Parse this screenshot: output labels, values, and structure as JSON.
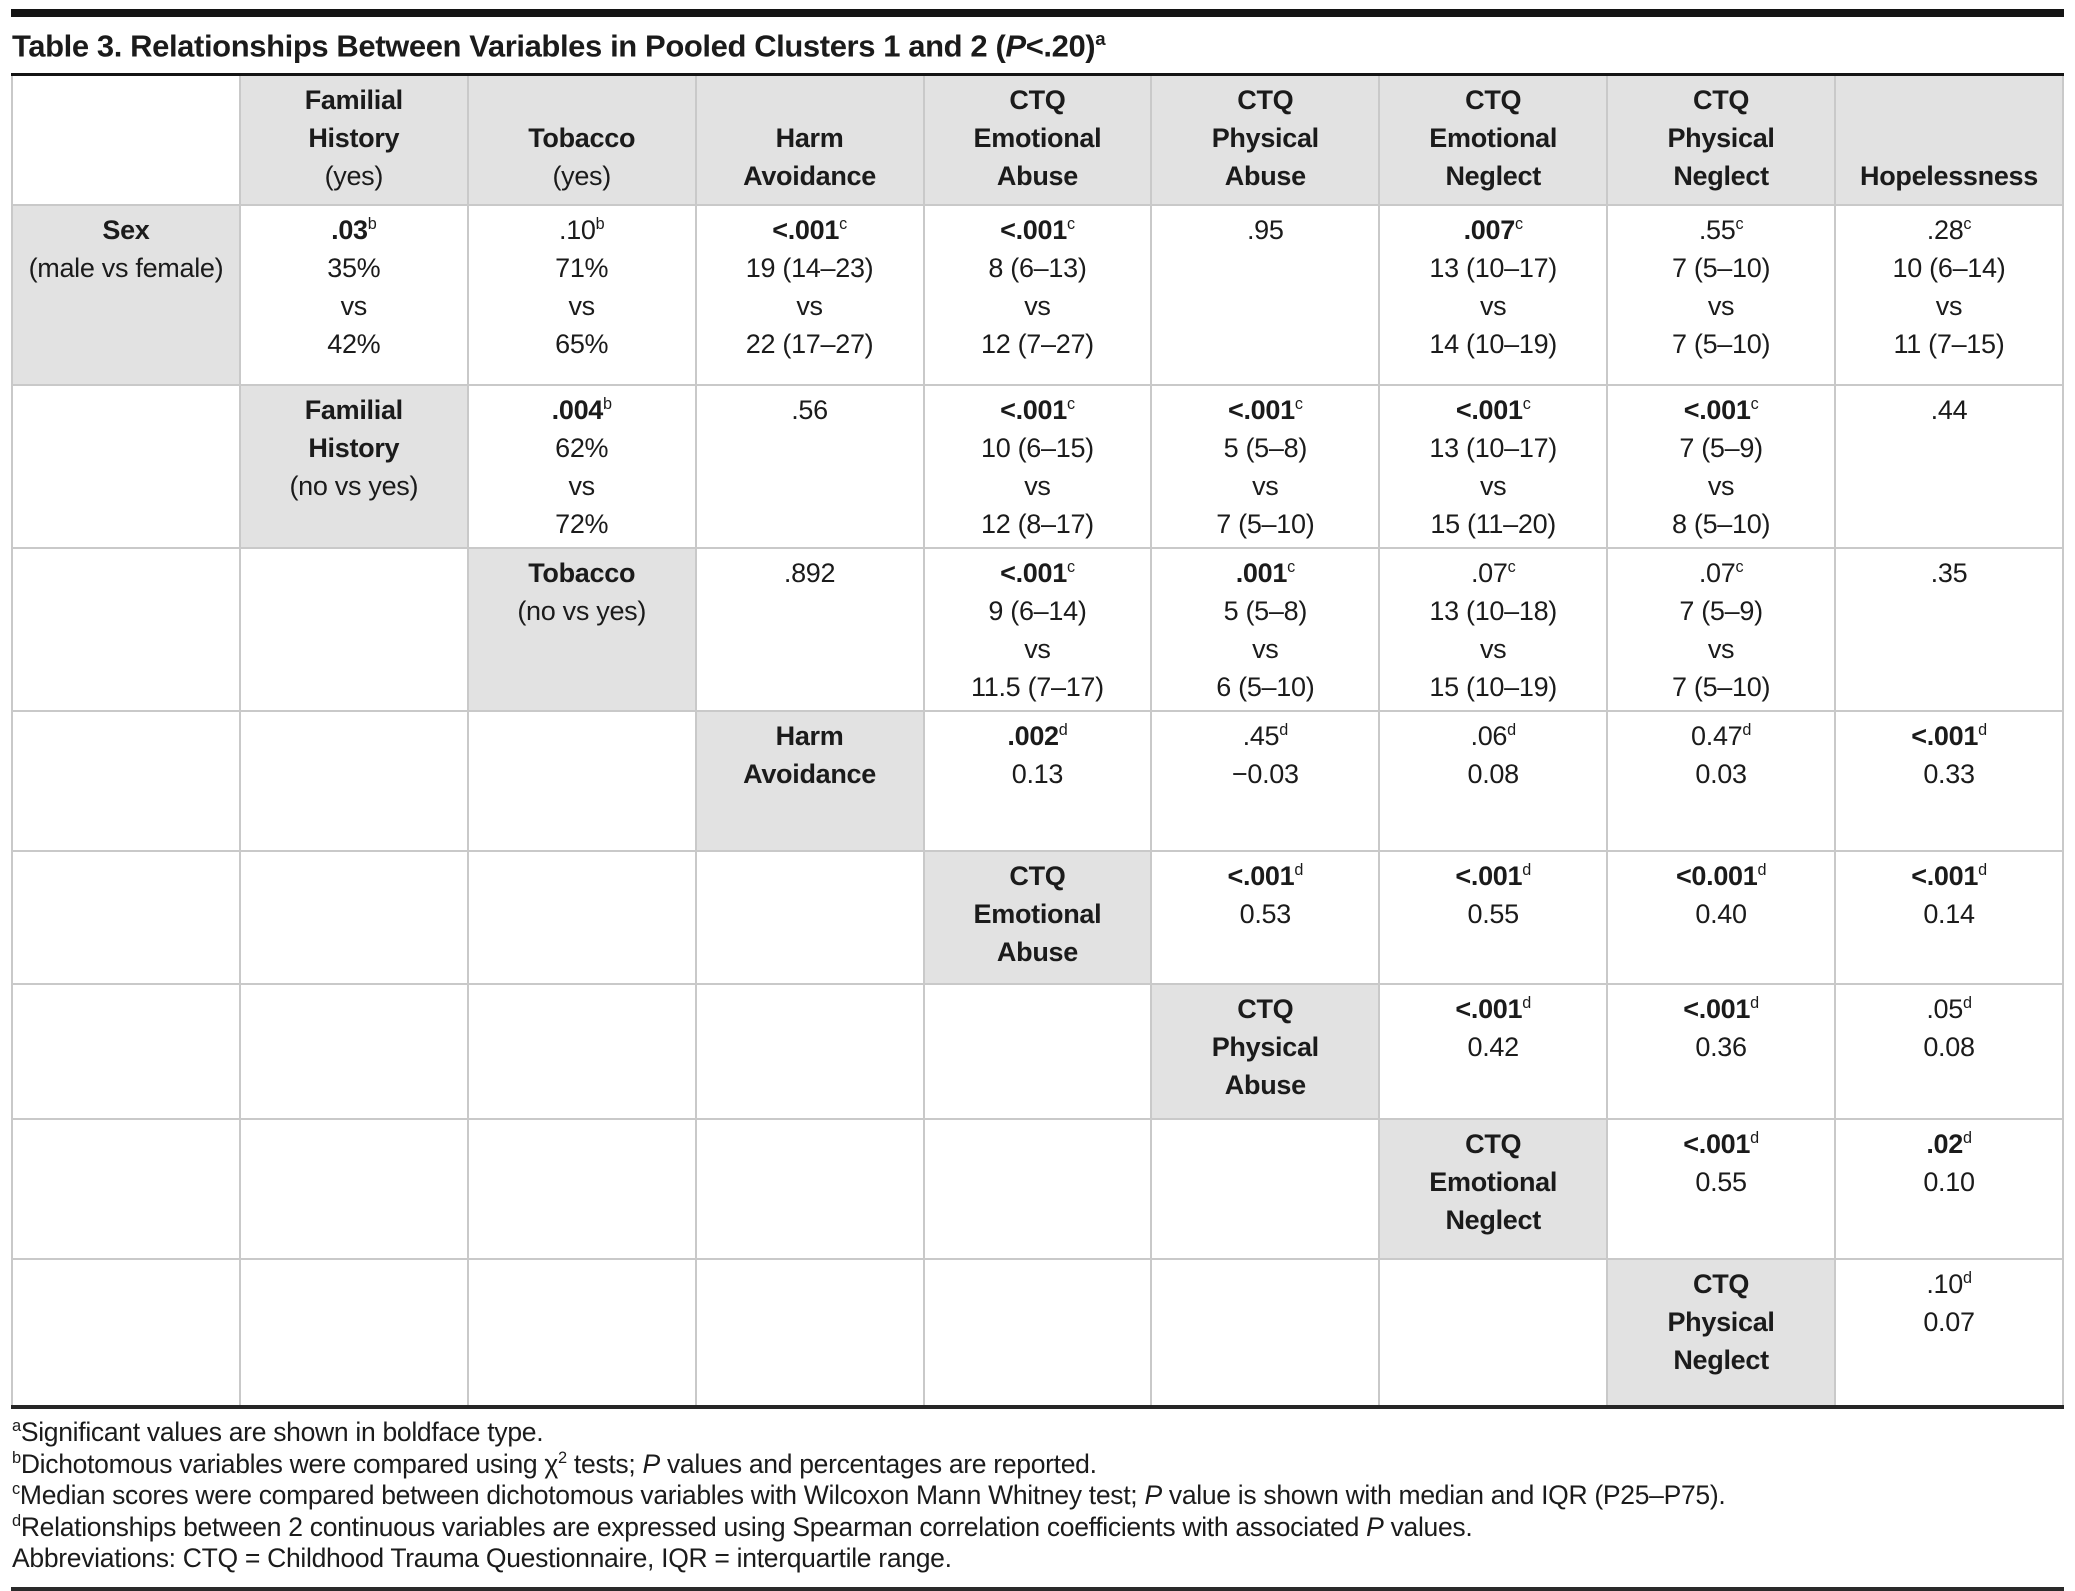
{
  "title": {
    "lead": "Table 3. Relationships Between Variables in Pooled Clusters 1 and 2 (",
    "p_italic": "P",
    "tail": "<.20)",
    "superscript": "a"
  },
  "colors": {
    "cell_shade": "#e2e2e2",
    "grid_line": "#c9c9c9",
    "rule_dark": "#141414"
  },
  "table": {
    "header": [
      null,
      {
        "k": "h",
        "b": [
          "Familial",
          "History"
        ],
        "n": [
          "(yes)"
        ]
      },
      {
        "k": "h",
        "b": [
          "Tobacco"
        ],
        "n": [
          "(yes)"
        ]
      },
      {
        "k": "h",
        "b": [
          "Harm",
          "Avoidance"
        ],
        "n": []
      },
      {
        "k": "h",
        "b": [
          "CTQ",
          "Emotional",
          "Abuse"
        ],
        "n": []
      },
      {
        "k": "h",
        "b": [
          "CTQ",
          "Physical",
          "Abuse"
        ],
        "n": []
      },
      {
        "k": "h",
        "b": [
          "CTQ",
          "Emotional",
          "Neglect"
        ],
        "n": []
      },
      {
        "k": "h",
        "b": [
          "CTQ",
          "Physical",
          "Neglect"
        ],
        "n": []
      },
      {
        "k": "h",
        "b": [
          "Hopelessness"
        ],
        "n": []
      }
    ],
    "rows": [
      [
        {
          "k": "h",
          "b": [
            "Sex"
          ],
          "n": [
            "(male vs female)"
          ]
        },
        {
          "k": "v",
          "p": ".03",
          "s": "b",
          "pb": true,
          "r": [
            "35%",
            "vs",
            "42%"
          ]
        },
        {
          "k": "v",
          "p": ".10",
          "s": "b",
          "pb": false,
          "r": [
            "71%",
            "vs",
            "65%"
          ]
        },
        {
          "k": "v",
          "p": "<.001",
          "s": "c",
          "pb": true,
          "r": [
            "19 (14–23)",
            "vs",
            "22 (17–27)"
          ]
        },
        {
          "k": "v",
          "p": "<.001",
          "s": "c",
          "pb": true,
          "r": [
            "8 (6–13)",
            "vs",
            "12 (7–27)"
          ]
        },
        {
          "k": "v",
          "p": ".95",
          "s": "",
          "pb": false,
          "r": []
        },
        {
          "k": "v",
          "p": ".007",
          "s": "c",
          "pb": true,
          "r": [
            "13 (10–17)",
            "vs",
            "14 (10–19)"
          ]
        },
        {
          "k": "v",
          "p": ".55",
          "s": "c",
          "pb": false,
          "r": [
            "7 (5–10)",
            "vs",
            "7 (5–10)"
          ]
        },
        {
          "k": "v",
          "p": ".28",
          "s": "c",
          "pb": false,
          "r": [
            "10 (6–14)",
            "vs",
            "11 (7–15)"
          ]
        }
      ],
      [
        null,
        {
          "k": "h",
          "b": [
            "Familial",
            "History"
          ],
          "n": [
            "(no vs yes)"
          ]
        },
        {
          "k": "v",
          "p": ".004",
          "s": "b",
          "pb": true,
          "r": [
            "62%",
            "vs",
            "72%"
          ]
        },
        {
          "k": "v",
          "p": ".56",
          "s": "",
          "pb": false,
          "r": []
        },
        {
          "k": "v",
          "p": "<.001",
          "s": "c",
          "pb": true,
          "r": [
            "10 (6–15)",
            "vs",
            "12 (8–17)"
          ]
        },
        {
          "k": "v",
          "p": "<.001",
          "s": "c",
          "pb": true,
          "r": [
            "5 (5–8)",
            "vs",
            "7 (5–10)"
          ]
        },
        {
          "k": "v",
          "p": "<.001",
          "s": "c",
          "pb": true,
          "r": [
            "13 (10–17)",
            "vs",
            "15 (11–20)"
          ]
        },
        {
          "k": "v",
          "p": "<.001",
          "s": "c",
          "pb": true,
          "r": [
            "7 (5–9)",
            "vs",
            "8 (5–10)"
          ]
        },
        {
          "k": "v",
          "p": ".44",
          "s": "",
          "pb": false,
          "r": []
        }
      ],
      [
        null,
        null,
        {
          "k": "h",
          "b": [
            "Tobacco"
          ],
          "n": [
            "(no vs yes)"
          ]
        },
        {
          "k": "v",
          "p": ".892",
          "s": "",
          "pb": false,
          "r": []
        },
        {
          "k": "v",
          "p": "<.001",
          "s": "c",
          "pb": true,
          "r": [
            "9 (6–14)",
            "vs",
            "11.5 (7–17)"
          ]
        },
        {
          "k": "v",
          "p": ".001",
          "s": "c",
          "pb": true,
          "r": [
            "5 (5–8)",
            "vs",
            "6 (5–10)"
          ]
        },
        {
          "k": "v",
          "p": ".07",
          "s": "c",
          "pb": false,
          "r": [
            "13 (10–18)",
            "vs",
            "15 (10–19)"
          ]
        },
        {
          "k": "v",
          "p": ".07",
          "s": "c",
          "pb": false,
          "r": [
            "7 (5–9)",
            "vs",
            "7 (5–10)"
          ]
        },
        {
          "k": "v",
          "p": ".35",
          "s": "",
          "pb": false,
          "r": []
        }
      ],
      [
        null,
        null,
        null,
        {
          "k": "h",
          "b": [
            "Harm",
            "Avoidance"
          ],
          "n": []
        },
        {
          "k": "v",
          "p": ".002",
          "s": "d",
          "pb": true,
          "r": [
            "0.13"
          ]
        },
        {
          "k": "v",
          "p": ".45",
          "s": "d",
          "pb": false,
          "r": [
            "−0.03"
          ]
        },
        {
          "k": "v",
          "p": ".06",
          "s": "d",
          "pb": false,
          "r": [
            "0.08"
          ]
        },
        {
          "k": "v",
          "p": "0.47",
          "s": "d",
          "pb": false,
          "r": [
            "0.03"
          ]
        },
        {
          "k": "v",
          "p": "<.001",
          "s": "d",
          "pb": true,
          "r": [
            "0.33"
          ]
        }
      ],
      [
        null,
        null,
        null,
        null,
        {
          "k": "h",
          "b": [
            "CTQ",
            "Emotional",
            "Abuse"
          ],
          "n": []
        },
        {
          "k": "v",
          "p": "<.001",
          "s": "d",
          "pb": true,
          "r": [
            "0.53"
          ]
        },
        {
          "k": "v",
          "p": "<.001",
          "s": "d",
          "pb": true,
          "r": [
            "0.55"
          ]
        },
        {
          "k": "v",
          "p": "<0.001",
          "s": "d",
          "pb": true,
          "r": [
            "0.40"
          ]
        },
        {
          "k": "v",
          "p": "<.001",
          "s": "d",
          "pb": true,
          "r": [
            "0.14"
          ]
        }
      ],
      [
        null,
        null,
        null,
        null,
        null,
        {
          "k": "h",
          "b": [
            "CTQ",
            "Physical",
            "Abuse"
          ],
          "n": []
        },
        {
          "k": "v",
          "p": "<.001",
          "s": "d",
          "pb": true,
          "r": [
            "0.42"
          ]
        },
        {
          "k": "v",
          "p": "<.001",
          "s": "d",
          "pb": true,
          "r": [
            "0.36"
          ]
        },
        {
          "k": "v",
          "p": ".05",
          "s": "d",
          "pb": false,
          "r": [
            "0.08"
          ]
        }
      ],
      [
        null,
        null,
        null,
        null,
        null,
        null,
        {
          "k": "h",
          "b": [
            "CTQ",
            "Emotional",
            "Neglect"
          ],
          "n": []
        },
        {
          "k": "v",
          "p": "<.001",
          "s": "d",
          "pb": true,
          "r": [
            "0.55"
          ]
        },
        {
          "k": "v",
          "p": ".02",
          "s": "d",
          "pb": true,
          "r": [
            "0.10"
          ]
        }
      ],
      [
        null,
        null,
        null,
        null,
        null,
        null,
        null,
        {
          "k": "h",
          "b": [
            "CTQ",
            "Physical",
            "Neglect"
          ],
          "n": []
        },
        {
          "k": "v",
          "p": ".10",
          "s": "d",
          "pb": false,
          "r": [
            "0.07"
          ]
        }
      ]
    ]
  },
  "footnotes": [
    {
      "sup": "a",
      "segs": [
        {
          "t": "Significant values are shown in boldface type."
        }
      ]
    },
    {
      "sup": "b",
      "segs": [
        {
          "t": "Dichotomous variables were compared using χ"
        },
        {
          "t": "2",
          "sup": true
        },
        {
          "t": " tests; "
        },
        {
          "t": "P",
          "i": true
        },
        {
          "t": " values and percentages are reported."
        }
      ]
    },
    {
      "sup": "c",
      "segs": [
        {
          "t": "Median scores were compared between dichotomous variables with Wilcoxon Mann Whitney test; "
        },
        {
          "t": "P",
          "i": true
        },
        {
          "t": " value is shown with median and IQR (P25–P75)."
        }
      ]
    },
    {
      "sup": "d",
      "segs": [
        {
          "t": "Relationships between 2 continuous variables are expressed using Spearman correlation coefficients with associated "
        },
        {
          "t": "P",
          "i": true
        },
        {
          "t": " values."
        }
      ]
    },
    {
      "sup": "",
      "segs": [
        {
          "t": "Abbreviations: CTQ = Childhood Trauma Questionnaire, IQR = interquartile range."
        }
      ]
    }
  ]
}
